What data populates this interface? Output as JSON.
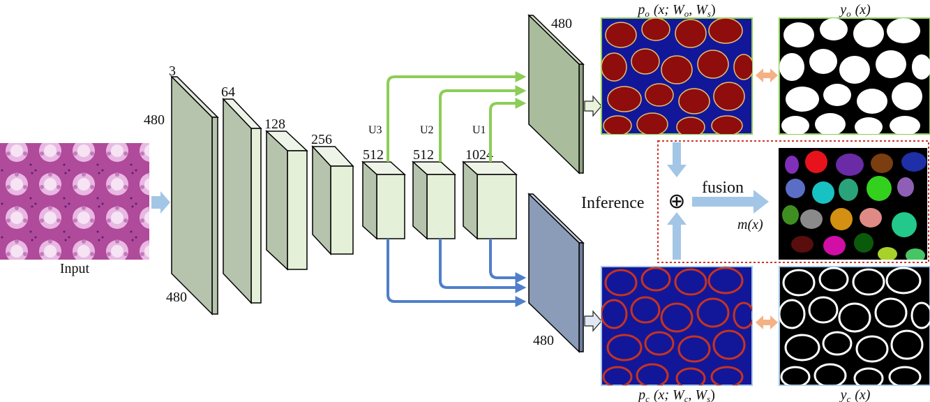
{
  "input": {
    "label": "Input"
  },
  "encoder": {
    "channels": [
      "3",
      "64",
      "128",
      "256",
      "512",
      "512",
      "1024"
    ],
    "size_top": "480",
    "size_bottom": "480"
  },
  "upsample": {
    "labels": [
      "U3",
      "U2",
      "U1"
    ]
  },
  "object_branch": {
    "size": "480",
    "prob_label": "p",
    "prob_sub": "o",
    "prob_args": "(x; W",
    "prob_arg_sub1": "o",
    "prob_arg_mid": ", W",
    "prob_arg_sub2": "s",
    "prob_close": ")",
    "gt_label": "y",
    "gt_sub": "o",
    "gt_args": "(x)"
  },
  "contour_branch": {
    "size": "480",
    "prob_label": "p",
    "prob_sub": "c",
    "prob_args": "(x; W",
    "prob_arg_sub1": "c",
    "prob_arg_mid": ", W",
    "prob_arg_sub2": "s",
    "prob_close": ")",
    "gt_label": "y",
    "gt_sub": "c",
    "gt_args": "(x)"
  },
  "inference": {
    "label": "Inference",
    "operator": "⊕",
    "fusion_label": "fusion",
    "result_label": "m(x)"
  },
  "colors": {
    "encoder_face": "#e4f0d8",
    "encoder_dark": "#b7c4ad",
    "object_out": "#a9bd9c",
    "contour_out": "#8b9cb8",
    "green_arrow": "#8ccd57",
    "blue_arrow": "#4f7fc9",
    "light_arrow": "#a3c6e6",
    "orange_arrow": "#f4b184",
    "dotted_box": "#d0342c",
    "heat_bg": "#12179a",
    "heat_blob": "#8f0d0d"
  }
}
